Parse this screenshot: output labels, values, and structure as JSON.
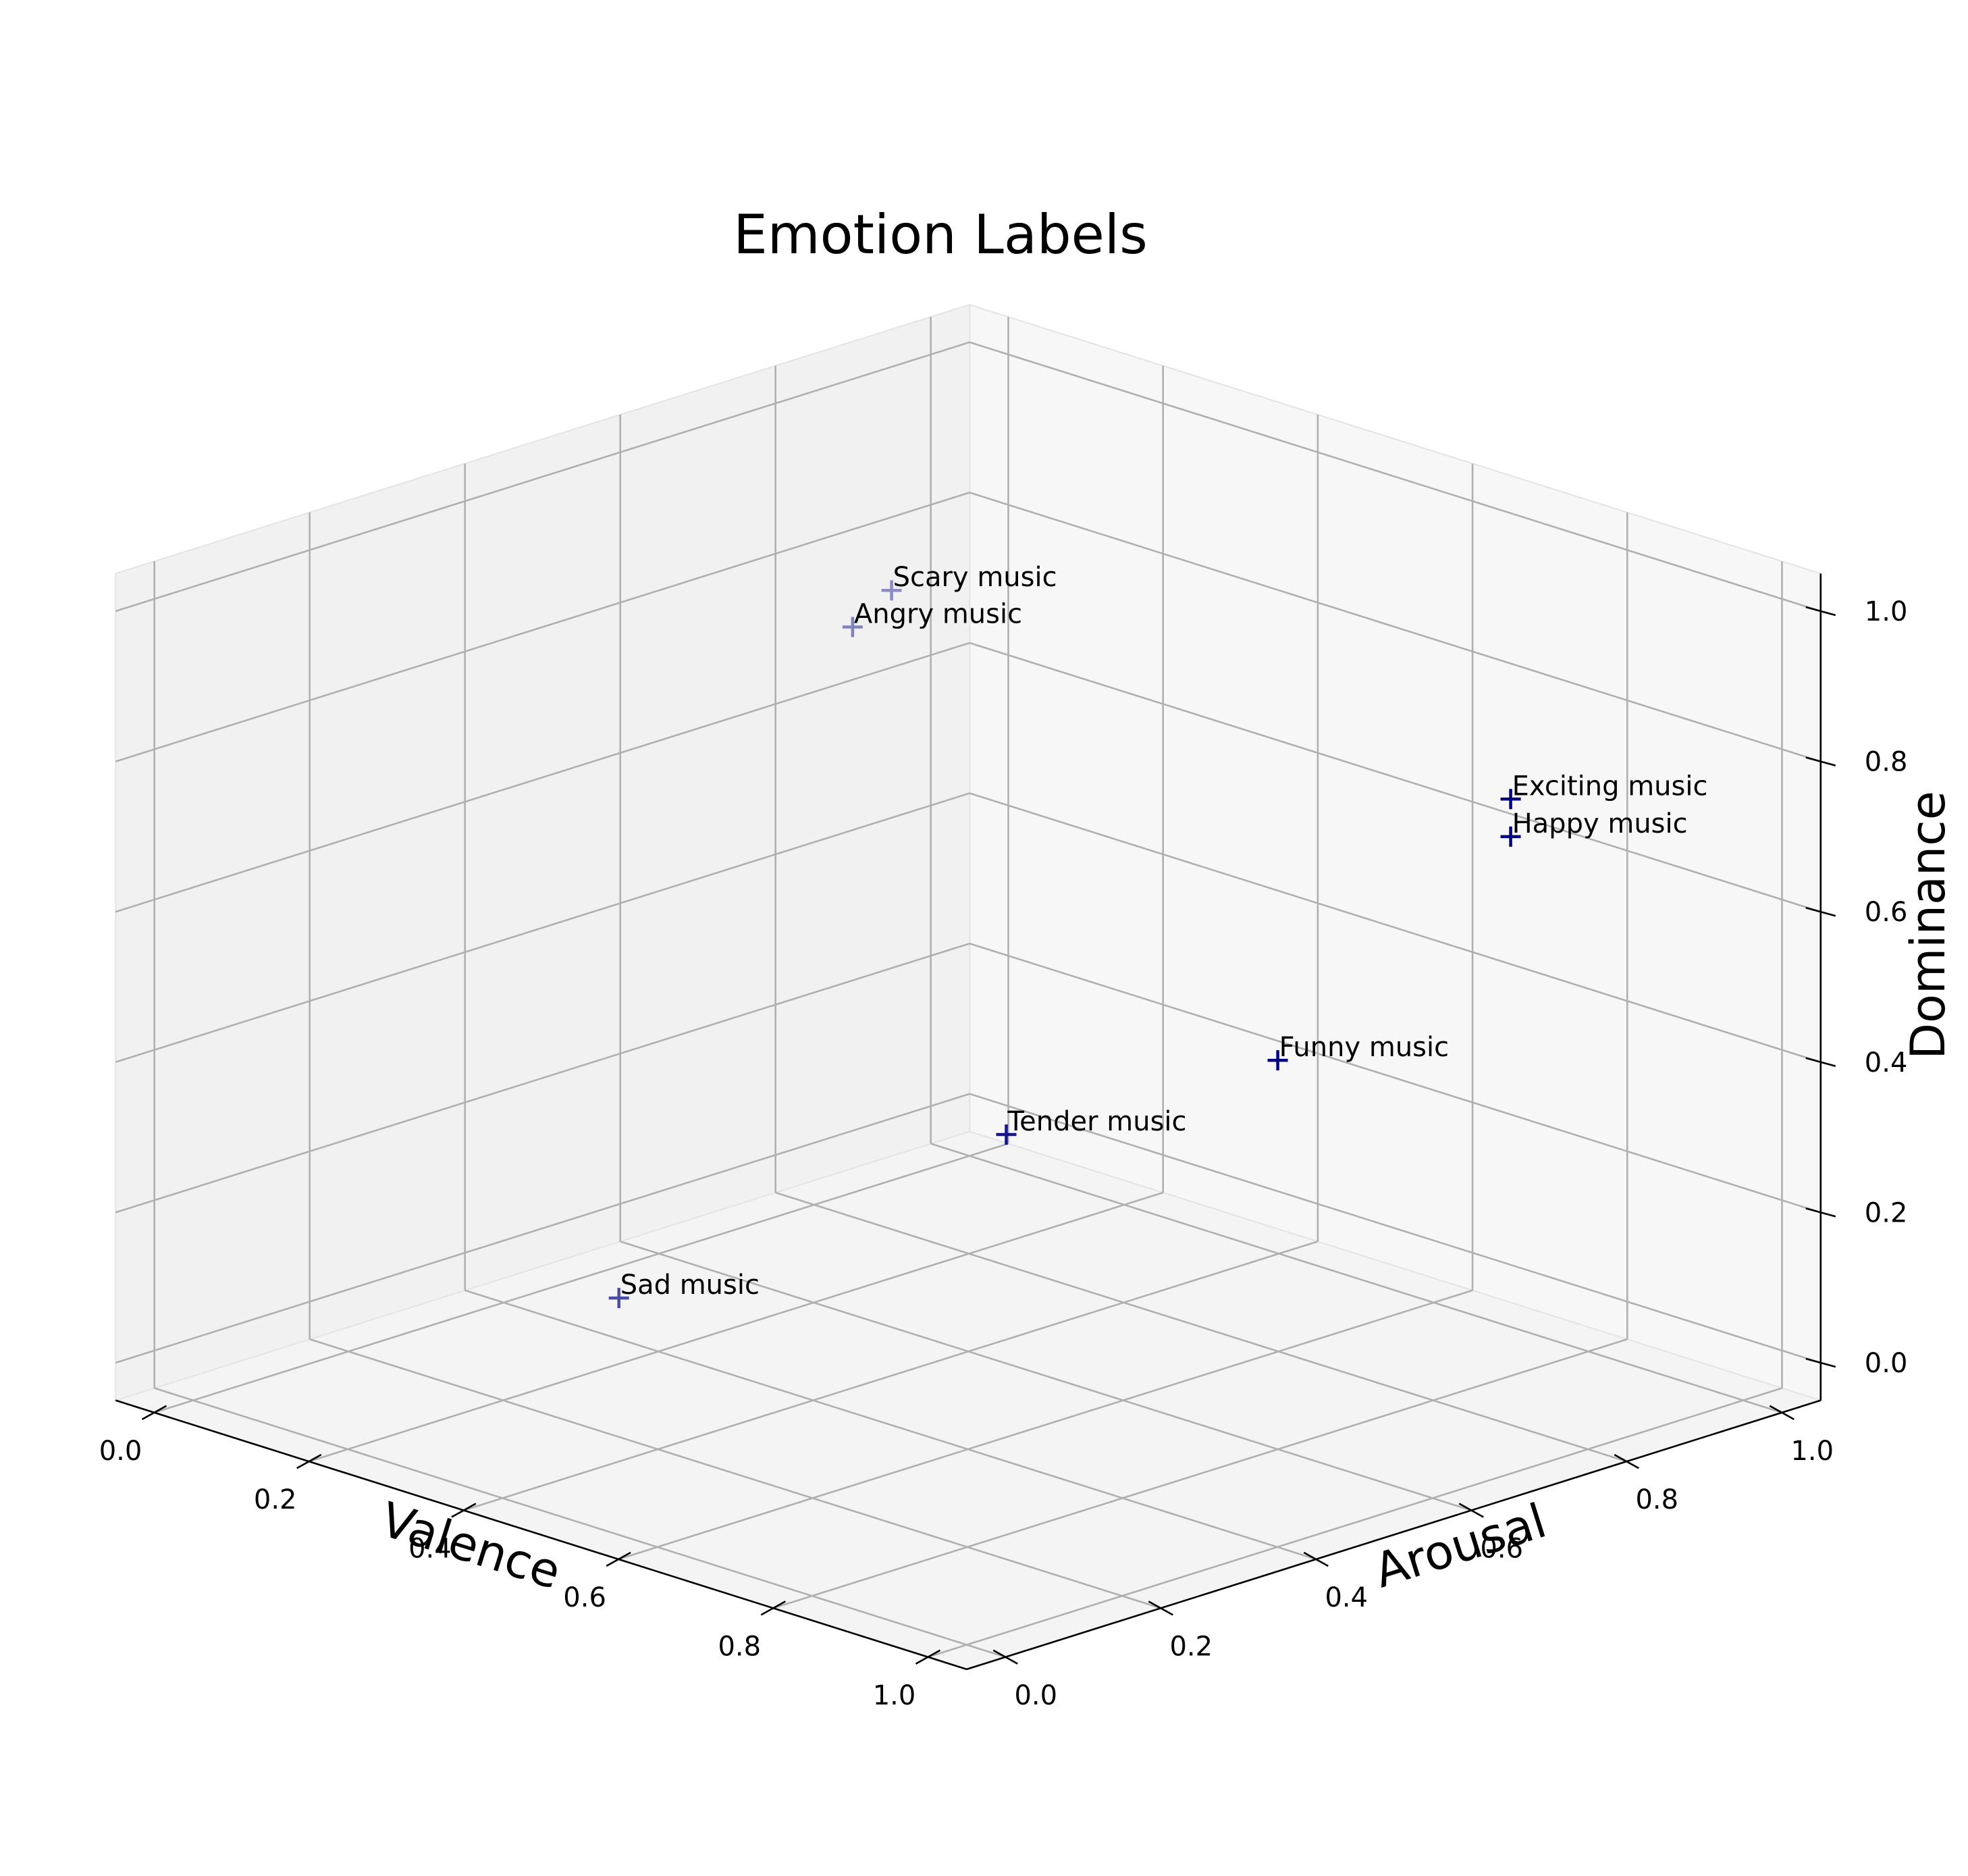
{
  "chart_data": {
    "type": "scatter",
    "title": "Emotion Labels",
    "xlabel": "Valence",
    "ylabel": "Arousal",
    "zlabel": "Dominance",
    "xlim": [
      0,
      1
    ],
    "ylim": [
      0,
      1
    ],
    "zlim": [
      0,
      1
    ],
    "grid": true,
    "marker": "+",
    "marker_color": "#000080",
    "x_ticks": [
      "0.0",
      "0.2",
      "0.4",
      "0.6",
      "0.8",
      "1.0"
    ],
    "y_ticks": [
      "0.0",
      "0.2",
      "0.4",
      "0.6",
      "0.8",
      "1.0"
    ],
    "z_ticks": [
      "0.0",
      "0.2",
      "0.4",
      "0.6",
      "0.8",
      "1.0"
    ],
    "points": [
      {
        "label": "Exciting music",
        "valence": 0.85,
        "arousal": 0.85,
        "dominance": 0.75
      },
      {
        "label": "Happy music",
        "valence": 0.85,
        "arousal": 0.85,
        "dominance": 0.7
      },
      {
        "label": "Funny music",
        "valence": 0.85,
        "arousal": 0.55,
        "dominance": 0.5
      },
      {
        "label": "Tender music",
        "valence": 0.75,
        "arousal": 0.3,
        "dominance": 0.45
      },
      {
        "label": "Angry music",
        "valence": 0.15,
        "arousal": 0.7,
        "dominance": 0.8
      },
      {
        "label": "Scary music",
        "valence": 0.1,
        "arousal": 0.8,
        "dominance": 0.8
      },
      {
        "label": "Sad music",
        "valence": 0.45,
        "arousal": 0.1,
        "dominance": 0.2
      }
    ]
  }
}
